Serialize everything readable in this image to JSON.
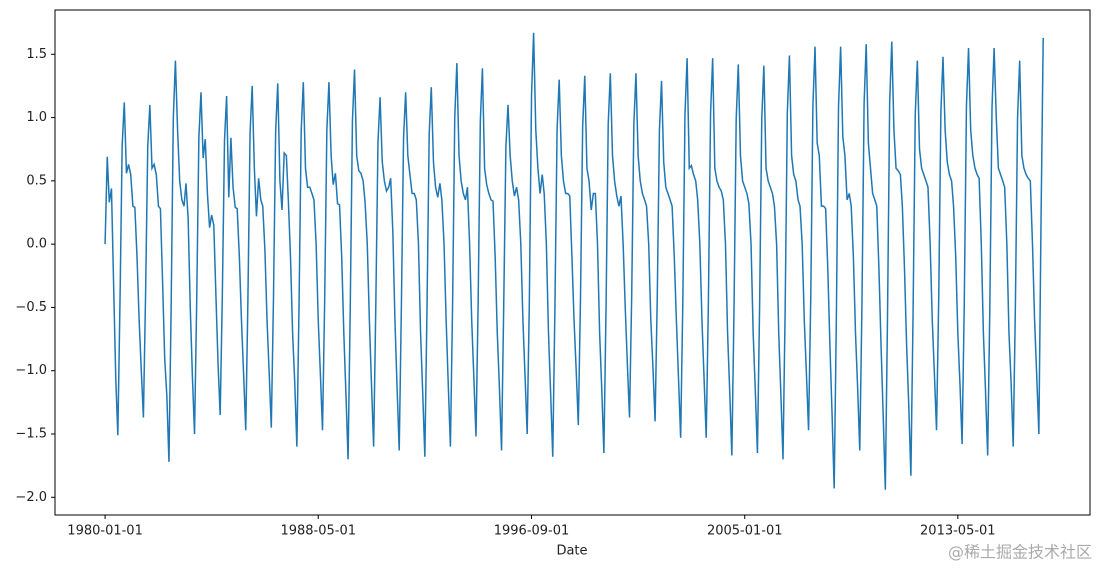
{
  "chart_data": {
    "type": "line",
    "xlabel": "Date",
    "watermark": "@稀土掘金技术社区",
    "color": "#1f77b4",
    "x": [
      "1980-01-01",
      "1980-02-01",
      "1980-03-01",
      "1980-04-01",
      "1980-05-01",
      "1980-06-01",
      "1980-07-01",
      "1980-08-01",
      "1980-09-01",
      "1980-10-01",
      "1980-11-01",
      "1980-12-01",
      "1981-01-01",
      "1981-02-01",
      "1981-03-01",
      "1981-04-01",
      "1981-05-01",
      "1981-06-01",
      "1981-07-01",
      "1981-08-01",
      "1981-09-01",
      "1981-10-01",
      "1981-11-01",
      "1981-12-01",
      "1982-01-01",
      "1982-02-01",
      "1982-03-01",
      "1982-04-01",
      "1982-05-01",
      "1982-06-01",
      "1982-07-01",
      "1982-08-01",
      "1982-09-01",
      "1982-10-01",
      "1982-11-01",
      "1982-12-01",
      "1983-01-01",
      "1983-02-01",
      "1983-03-01",
      "1983-04-01",
      "1983-05-01",
      "1983-06-01",
      "1983-07-01",
      "1983-08-01",
      "1983-09-01",
      "1983-10-01",
      "1983-11-01",
      "1983-12-01",
      "1984-01-01",
      "1984-02-01",
      "1984-03-01",
      "1984-04-01",
      "1984-05-01",
      "1984-06-01",
      "1984-07-01",
      "1984-08-01",
      "1984-09-01",
      "1984-10-01",
      "1984-11-01",
      "1984-12-01",
      "1985-01-01",
      "1985-02-01",
      "1985-03-01",
      "1985-04-01",
      "1985-05-01",
      "1985-06-01",
      "1985-07-01",
      "1985-08-01",
      "1985-09-01",
      "1985-10-01",
      "1985-11-01",
      "1985-12-01",
      "1986-01-01",
      "1986-02-01",
      "1986-03-01",
      "1986-04-01",
      "1986-05-01",
      "1986-06-01",
      "1986-07-01",
      "1986-08-01",
      "1986-09-01",
      "1986-10-01",
      "1986-11-01",
      "1986-12-01",
      "1987-01-01",
      "1987-02-01",
      "1987-03-01",
      "1987-04-01",
      "1987-05-01",
      "1987-06-01",
      "1987-07-01",
      "1987-08-01",
      "1987-09-01",
      "1987-10-01",
      "1987-11-01",
      "1987-12-01",
      "1988-01-01",
      "1988-02-01",
      "1988-03-01",
      "1988-04-01",
      "1988-05-01",
      "1988-06-01",
      "1988-07-01",
      "1988-08-01",
      "1988-09-01",
      "1988-10-01",
      "1988-11-01",
      "1988-12-01",
      "1989-01-01",
      "1989-02-01",
      "1989-03-01",
      "1989-04-01",
      "1989-05-01",
      "1989-06-01",
      "1989-07-01",
      "1989-08-01",
      "1989-09-01",
      "1989-10-01",
      "1989-11-01",
      "1989-12-01",
      "1990-01-01",
      "1990-02-01",
      "1990-03-01",
      "1990-04-01",
      "1990-05-01",
      "1990-06-01",
      "1990-07-01",
      "1990-08-01",
      "1990-09-01",
      "1990-10-01",
      "1990-11-01",
      "1990-12-01",
      "1991-01-01",
      "1991-02-01",
      "1991-03-01",
      "1991-04-01",
      "1991-05-01",
      "1991-06-01",
      "1991-07-01",
      "1991-08-01",
      "1991-09-01",
      "1991-10-01",
      "1991-11-01",
      "1991-12-01",
      "1992-01-01",
      "1992-02-01",
      "1992-03-01",
      "1992-04-01",
      "1992-05-01",
      "1992-06-01",
      "1992-07-01",
      "1992-08-01",
      "1992-09-01",
      "1992-10-01",
      "1992-11-01",
      "1992-12-01",
      "1993-01-01",
      "1993-02-01",
      "1993-03-01",
      "1993-04-01",
      "1993-05-01",
      "1993-06-01",
      "1993-07-01",
      "1993-08-01",
      "1993-09-01",
      "1993-10-01",
      "1993-11-01",
      "1993-12-01",
      "1994-01-01",
      "1994-02-01",
      "1994-03-01",
      "1994-04-01",
      "1994-05-01",
      "1994-06-01",
      "1994-07-01",
      "1994-08-01",
      "1994-09-01",
      "1994-10-01",
      "1994-11-01",
      "1994-12-01",
      "1995-01-01",
      "1995-02-01",
      "1995-03-01",
      "1995-04-01",
      "1995-05-01",
      "1995-06-01",
      "1995-07-01",
      "1995-08-01",
      "1995-09-01",
      "1995-10-01",
      "1995-11-01",
      "1995-12-01",
      "1996-01-01",
      "1996-02-01",
      "1996-03-01",
      "1996-04-01",
      "1996-05-01",
      "1996-06-01",
      "1996-07-01",
      "1996-08-01",
      "1996-09-01",
      "1996-10-01",
      "1996-11-01",
      "1996-12-01",
      "1997-01-01",
      "1997-02-01",
      "1997-03-01",
      "1997-04-01",
      "1997-05-01",
      "1997-06-01",
      "1997-07-01",
      "1997-08-01",
      "1997-09-01",
      "1997-10-01",
      "1997-11-01",
      "1997-12-01",
      "1998-01-01",
      "1998-02-01",
      "1998-03-01",
      "1998-04-01",
      "1998-05-01",
      "1998-06-01",
      "1998-07-01",
      "1998-08-01",
      "1998-09-01",
      "1998-10-01",
      "1998-11-01",
      "1998-12-01",
      "1999-01-01",
      "1999-02-01",
      "1999-03-01",
      "1999-04-01",
      "1999-05-01",
      "1999-06-01",
      "1999-07-01",
      "1999-08-01",
      "1999-09-01",
      "1999-10-01",
      "1999-11-01",
      "1999-12-01",
      "2000-01-01",
      "2000-02-01",
      "2000-03-01",
      "2000-04-01",
      "2000-05-01",
      "2000-06-01",
      "2000-07-01",
      "2000-08-01",
      "2000-09-01",
      "2000-10-01",
      "2000-11-01",
      "2000-12-01",
      "2001-01-01",
      "2001-02-01",
      "2001-03-01",
      "2001-04-01",
      "2001-05-01",
      "2001-06-01",
      "2001-07-01",
      "2001-08-01",
      "2001-09-01",
      "2001-10-01",
      "2001-11-01",
      "2001-12-01",
      "2002-01-01",
      "2002-02-01",
      "2002-03-01",
      "2002-04-01",
      "2002-05-01",
      "2002-06-01",
      "2002-07-01",
      "2002-08-01",
      "2002-09-01",
      "2002-10-01",
      "2002-11-01",
      "2002-12-01",
      "2003-01-01",
      "2003-02-01",
      "2003-03-01",
      "2003-04-01",
      "2003-05-01",
      "2003-06-01",
      "2003-07-01",
      "2003-08-01",
      "2003-09-01",
      "2003-10-01",
      "2003-11-01",
      "2003-12-01",
      "2004-01-01",
      "2004-02-01",
      "2004-03-01",
      "2004-04-01",
      "2004-05-01",
      "2004-06-01",
      "2004-07-01",
      "2004-08-01",
      "2004-09-01",
      "2004-10-01",
      "2004-11-01",
      "2004-12-01",
      "2005-01-01",
      "2005-02-01",
      "2005-03-01",
      "2005-04-01",
      "2005-05-01",
      "2005-06-01",
      "2005-07-01",
      "2005-08-01",
      "2005-09-01",
      "2005-10-01",
      "2005-11-01",
      "2005-12-01",
      "2006-01-01",
      "2006-02-01",
      "2006-03-01",
      "2006-04-01",
      "2006-05-01",
      "2006-06-01",
      "2006-07-01",
      "2006-08-01",
      "2006-09-01",
      "2006-10-01",
      "2006-11-01",
      "2006-12-01",
      "2007-01-01",
      "2007-02-01",
      "2007-03-01",
      "2007-04-01",
      "2007-05-01",
      "2007-06-01",
      "2007-07-01",
      "2007-08-01",
      "2007-09-01",
      "2007-10-01",
      "2007-11-01",
      "2007-12-01",
      "2008-01-01",
      "2008-02-01",
      "2008-03-01",
      "2008-04-01",
      "2008-05-01",
      "2008-06-01",
      "2008-07-01",
      "2008-08-01",
      "2008-09-01",
      "2008-10-01",
      "2008-11-01",
      "2008-12-01",
      "2009-01-01",
      "2009-02-01",
      "2009-03-01",
      "2009-04-01",
      "2009-05-01",
      "2009-06-01",
      "2009-07-01",
      "2009-08-01",
      "2009-09-01",
      "2009-10-01",
      "2009-11-01",
      "2009-12-01",
      "2010-01-01",
      "2010-02-01",
      "2010-03-01",
      "2010-04-01",
      "2010-05-01",
      "2010-06-01",
      "2010-07-01",
      "2010-08-01",
      "2010-09-01",
      "2010-10-01",
      "2010-11-01",
      "2010-12-01",
      "2011-01-01",
      "2011-02-01",
      "2011-03-01",
      "2011-04-01",
      "2011-05-01",
      "2011-06-01",
      "2011-07-01",
      "2011-08-01",
      "2011-09-01",
      "2011-10-01",
      "2011-11-01",
      "2011-12-01",
      "2012-01-01",
      "2012-02-01",
      "2012-03-01",
      "2012-04-01",
      "2012-05-01",
      "2012-06-01",
      "2012-07-01",
      "2012-08-01",
      "2012-09-01",
      "2012-10-01",
      "2012-11-01",
      "2012-12-01",
      "2013-01-01",
      "2013-02-01",
      "2013-03-01",
      "2013-04-01",
      "2013-05-01",
      "2013-06-01",
      "2013-07-01",
      "2013-08-01",
      "2013-09-01",
      "2013-10-01",
      "2013-11-01",
      "2013-12-01",
      "2014-01-01",
      "2014-02-01",
      "2014-03-01",
      "2014-04-01",
      "2014-05-01",
      "2014-06-01",
      "2014-07-01",
      "2014-08-01",
      "2014-09-01",
      "2014-10-01",
      "2014-11-01",
      "2014-12-01",
      "2015-01-01",
      "2015-02-01",
      "2015-03-01",
      "2015-04-01",
      "2015-05-01",
      "2015-06-01",
      "2015-07-01",
      "2015-08-01",
      "2015-09-01",
      "2015-10-01",
      "2015-11-01",
      "2015-12-01",
      "2016-01-01",
      "2016-02-01",
      "2016-03-01",
      "2016-04-01",
      "2016-05-01",
      "2016-06-01",
      "2016-07-01",
      "2016-08-01",
      "2016-09-01"
    ],
    "values": [
      0,
      0.69,
      0.33,
      0.44,
      -0.3,
      -1.05,
      -1.51,
      -0.45,
      0.78,
      1.12,
      0.56,
      0.63,
      0.55,
      0.3,
      0.29,
      -0.1,
      -0.6,
      -1.0,
      -1.37,
      -0.4,
      0.77,
      1.1,
      0.6,
      0.63,
      0.55,
      0.3,
      0.28,
      -0.3,
      -0.9,
      -1.2,
      -1.72,
      -0.5,
      1.0,
      1.45,
      0.9,
      0.5,
      0.35,
      0.3,
      0.48,
      0.2,
      -0.5,
      -1.05,
      -1.5,
      -0.45,
      0.84,
      1.2,
      0.68,
      0.83,
      0.4,
      0.13,
      0.23,
      0.15,
      -0.4,
      -0.95,
      -1.35,
      -0.4,
      0.82,
      1.17,
      0.37,
      0.84,
      0.45,
      0.29,
      0.28,
      -0.1,
      -0.6,
      -1.03,
      -1.47,
      -0.44,
      0.88,
      1.25,
      0.6,
      0.22,
      0.52,
      0.35,
      0.3,
      -0.05,
      -0.6,
      -1.02,
      -1.45,
      -0.43,
      0.89,
      1.27,
      0.5,
      0.27,
      0.72,
      0.7,
      0.35,
      -0.1,
      -0.7,
      -1.1,
      -1.6,
      -0.48,
      0.9,
      1.28,
      0.6,
      0.45,
      0.45,
      0.4,
      0.35,
      0,
      -0.6,
      -1.03,
      -1.47,
      -0.44,
      0.9,
      1.28,
      0.7,
      0.47,
      0.56,
      0.32,
      0.31,
      -0.1,
      -0.7,
      -1.19,
      -1.7,
      -0.51,
      0.97,
      1.38,
      0.7,
      0.58,
      0.56,
      0.5,
      0.33,
      0,
      -0.6,
      -1.12,
      -1.6,
      -0.48,
      0.81,
      1.16,
      0.65,
      0.5,
      0.42,
      0.45,
      0.52,
      0.1,
      -0.6,
      -1.14,
      -1.63,
      -0.49,
      0.84,
      1.2,
      0.7,
      0.55,
      0.4,
      0.4,
      0.35,
      0,
      -0.7,
      -1.18,
      -1.68,
      -0.5,
      0.87,
      1.24,
      0.65,
      0.45,
      0.37,
      0.48,
      0.35,
      0,
      -0.6,
      -1.12,
      -1.6,
      -0.48,
      1.0,
      1.43,
      0.7,
      0.5,
      0.4,
      0.35,
      0.45,
      0,
      -0.6,
      -1.06,
      -1.52,
      -0.46,
      0.97,
      1.39,
      0.6,
      0.47,
      0.4,
      0.35,
      0.34,
      -0.1,
      -0.7,
      -1.14,
      -1.63,
      -0.49,
      0.77,
      1.1,
      0.7,
      0.5,
      0.38,
      0.45,
      0.35,
      0,
      -0.6,
      -1.05,
      -1.5,
      -0.45,
      1.17,
      1.67,
      0.9,
      0.6,
      0.4,
      0.55,
      0.4,
      0,
      -0.7,
      -1.18,
      -1.68,
      -0.5,
      0.91,
      1.3,
      0.7,
      0.5,
      0.4,
      0.4,
      0.38,
      -0.1,
      -0.6,
      -1.0,
      -1.43,
      -0.43,
      0.93,
      1.33,
      0.6,
      0.5,
      0.27,
      0.4,
      0.4,
      0,
      -0.7,
      -1.15,
      -1.65,
      -0.5,
      0.95,
      1.35,
      0.7,
      0.5,
      0.38,
      0.3,
      0.38,
      0,
      -0.5,
      -0.96,
      -1.37,
      -0.41,
      0.95,
      1.35,
      0.7,
      0.5,
      0.4,
      0.35,
      0.3,
      0,
      -0.6,
      -0.98,
      -1.4,
      -0.42,
      0.9,
      1.29,
      0.65,
      0.45,
      0.4,
      0.35,
      0.3,
      -0.1,
      -0.6,
      -1.07,
      -1.53,
      -0.46,
      1.03,
      1.47,
      0.6,
      0.62,
      0.55,
      0.5,
      0.35,
      0,
      -0.6,
      -1.07,
      -1.53,
      -0.46,
      1.03,
      1.47,
      0.6,
      0.5,
      0.45,
      0.42,
      0.35,
      0,
      -0.7,
      -1.17,
      -1.67,
      -0.5,
      0.99,
      1.42,
      0.7,
      0.5,
      0.45,
      0.4,
      0.32,
      0,
      -0.7,
      -1.16,
      -1.65,
      -0.5,
      0.99,
      1.41,
      0.6,
      0.5,
      0.45,
      0.4,
      0.3,
      0,
      -0.7,
      -1.19,
      -1.7,
      -0.51,
      1.04,
      1.49,
      0.7,
      0.55,
      0.5,
      0.35,
      0.3,
      0,
      -0.6,
      -1.03,
      -1.47,
      -0.44,
      1.09,
      1.56,
      0.8,
      0.7,
      0.3,
      0.3,
      0.28,
      -0.2,
      -0.8,
      -1.35,
      -1.93,
      -0.58,
      1.09,
      1.56,
      0.85,
      0.7,
      0.35,
      0.4,
      0.3,
      -0.1,
      -0.7,
      -1.14,
      -1.63,
      -0.49,
      1.11,
      1.58,
      0.8,
      0.6,
      0.4,
      0.35,
      0.3,
      -0.2,
      -0.8,
      -1.36,
      -1.94,
      -0.58,
      1.12,
      1.6,
      0.9,
      0.6,
      0.58,
      0.55,
      0.3,
      -0.2,
      -0.8,
      -1.28,
      -1.83,
      -0.55,
      1.02,
      1.45,
      0.75,
      0.6,
      0.55,
      0.5,
      0.45,
      0,
      -0.6,
      -1.03,
      -1.47,
      -0.44,
      1.04,
      1.48,
      0.9,
      0.65,
      0.55,
      0.5,
      0.3,
      -0.1,
      -0.7,
      -1.11,
      -1.58,
      -0.47,
      1.09,
      1.55,
      0.9,
      0.7,
      0.6,
      0.55,
      0.52,
      0,
      -0.7,
      -1.17,
      -1.67,
      -0.5,
      1.08,
      1.55,
      1.0,
      0.6,
      0.55,
      0.5,
      0.45,
      0,
      -0.7,
      -1.1,
      -1.6,
      -0.48,
      1.0,
      1.45,
      0.7,
      0.6,
      0.55,
      0.52,
      0.5,
      0,
      -0.6,
      -1.05,
      -1.5,
      0.2,
      1.63
    ],
    "xlim": [
      "1978-01-16",
      "2018-07-01"
    ],
    "xticks": [
      "1980-01-01",
      "1988-05-01",
      "1996-09-01",
      "2005-01-01",
      "2013-05-01"
    ],
    "ylim": [
      -2.14,
      1.85
    ],
    "yticks": [
      {
        "value": -2.0,
        "label": "−2.0"
      },
      {
        "value": -1.5,
        "label": "−1.5"
      },
      {
        "value": -1.0,
        "label": "−1.0"
      },
      {
        "value": -0.5,
        "label": "−0.5"
      },
      {
        "value": 0.0,
        "label": "0.0"
      },
      {
        "value": 0.5,
        "label": "0.5"
      },
      {
        "value": 1.0,
        "label": "1.0"
      },
      {
        "value": 1.5,
        "label": "1.5"
      }
    ]
  }
}
